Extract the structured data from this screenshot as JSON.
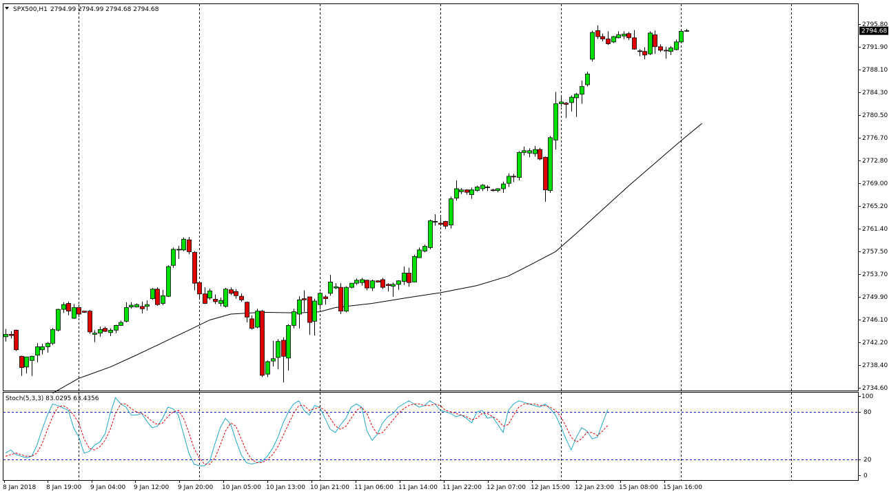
{
  "header": {
    "menu_icon": "triangle-down-icon",
    "symbol": "SPX500,H1",
    "ohlc": "2794.99 2794.99 2794.68 2794.68"
  },
  "colors": {
    "bull": "#00e000",
    "bear": "#e00000",
    "wick": "#000000",
    "ma": "#000000",
    "stoch_main": "#20a8c8",
    "stoch_signal": "#e00000",
    "level_lines": "#0000c0",
    "period_sep": "#000000",
    "price_tag_bg": "#000000",
    "price_tag_text": "#ffffff"
  },
  "stoch": {
    "label": "Stoch(5,3,3) 83.0295 63.4356",
    "ticks": [
      "100",
      "80",
      "20",
      "0"
    ],
    "levels": [
      80,
      20
    ]
  },
  "price_axis": {
    "ticks": [
      "2795.80",
      "2791.90",
      "2788.10",
      "2784.30",
      "2780.50",
      "2776.70",
      "2772.80",
      "2769.00",
      "2765.20",
      "2761.40",
      "2757.50",
      "2753.70",
      "2749.90",
      "2746.10",
      "2742.20",
      "2738.40",
      "2734.60"
    ],
    "current": "2794.68"
  },
  "time_axis": {
    "labels": [
      "8 Jan 2018",
      "8 Jan 19:00",
      "9 Jan 04:00",
      "9 Jan 12:00",
      "9 Jan 20:00",
      "10 Jan 05:00",
      "10 Jan 13:00",
      "10 Jan 21:00",
      "11 Jan 06:00",
      "11 Jan 14:00",
      "11 Jan 22:00",
      "12 Jan 07:00",
      "12 Jan 15:00",
      "12 Jan 23:00",
      "15 Jan 08:00",
      "15 Jan 16:00"
    ]
  },
  "chart_data": [
    {
      "type": "candlestick",
      "title": "SPX500,H1",
      "ylim": [
        2733.7,
        2797.7
      ],
      "grid": false,
      "period_separators_at_candle": [
        14,
        37,
        60,
        83,
        106,
        129,
        150
      ],
      "candles": [
        [
          2743.2,
          2744.5,
          2742.4,
          2743.6
        ],
        [
          2743.6,
          2744.1,
          2742.9,
          2743.4
        ],
        [
          2744.3,
          2744.4,
          2740.8,
          2741.0
        ],
        [
          2739.9,
          2740.0,
          2736.6,
          2738.0
        ],
        [
          2738.1,
          2739.8,
          2737.0,
          2739.8
        ],
        [
          2739.2,
          2740.0,
          2736.6,
          2739.9
        ],
        [
          2740.1,
          2742.1,
          2738.9,
          2741.5
        ],
        [
          2741.0,
          2742.0,
          2740.2,
          2741.5
        ],
        [
          2741.5,
          2742.3,
          2740.5,
          2742.1
        ],
        [
          2742.1,
          2744.7,
          2741.8,
          2744.4
        ],
        [
          2744.3,
          2747.9,
          2744.1,
          2747.8
        ],
        [
          2747.8,
          2749.0,
          2747.2,
          2748.6
        ],
        [
          2748.8,
          2749.1,
          2746.8,
          2747.5
        ],
        [
          2746.3,
          2748.7,
          2746.2,
          2748.1
        ],
        [
          2748.1,
          2748.6,
          2746.5,
          2747.0
        ],
        [
          2747.5,
          2747.5,
          2747.2,
          2747.3
        ],
        [
          2747.5,
          2747.7,
          2743.7,
          2744.0
        ],
        [
          2743.6,
          2744.3,
          2742.3,
          2743.8
        ],
        [
          2743.8,
          2744.9,
          2743.2,
          2744.4
        ],
        [
          2744.6,
          2744.9,
          2744.0,
          2744.1
        ],
        [
          2743.9,
          2744.6,
          2743.3,
          2744.3
        ],
        [
          2744.3,
          2745.2,
          2743.8,
          2745.1
        ],
        [
          2745.1,
          2745.9,
          2745.0,
          2745.6
        ],
        [
          2745.8,
          2749.0,
          2745.6,
          2748.1
        ],
        [
          2748.2,
          2749.0,
          2747.9,
          2748.5
        ],
        [
          2748.2,
          2748.8,
          2748.1,
          2748.6
        ],
        [
          2748.3,
          2749.1,
          2747.1,
          2747.9
        ],
        [
          2748.3,
          2749.3,
          2747.6,
          2748.6
        ],
        [
          2749.6,
          2751.4,
          2749.4,
          2751.2
        ],
        [
          2751.2,
          2751.5,
          2748.4,
          2748.6
        ],
        [
          2748.8,
          2751.1,
          2748.5,
          2750.1
        ],
        [
          2750.0,
          2755.2,
          2749.9,
          2755.0
        ],
        [
          2755.2,
          2758.2,
          2754.8,
          2757.9
        ],
        [
          2757.9,
          2758.5,
          2756.3,
          2757.9
        ],
        [
          2757.8,
          2759.9,
          2757.6,
          2759.6
        ],
        [
          2759.5,
          2760.0,
          2757.1,
          2757.5
        ],
        [
          2757.4,
          2757.6,
          2751.0,
          2752.2
        ],
        [
          2752.3,
          2752.4,
          2749.6,
          2750.4
        ],
        [
          2750.4,
          2751.5,
          2748.7,
          2748.8
        ],
        [
          2749.7,
          2751.3,
          2749.4,
          2750.9
        ],
        [
          2749.5,
          2750.3,
          2748.7,
          2749.1
        ],
        [
          2748.8,
          2749.8,
          2748.3,
          2749.3
        ],
        [
          2748.3,
          2751.4,
          2748.1,
          2751.2
        ],
        [
          2751.1,
          2751.5,
          2750.2,
          2750.5
        ],
        [
          2750.8,
          2751.2,
          2749.6,
          2750.1
        ],
        [
          2750.0,
          2750.5,
          2749.1,
          2749.4
        ],
        [
          2749.0,
          2749.1,
          2745.6,
          2746.5
        ],
        [
          2746.2,
          2746.8,
          2744.4,
          2744.6
        ],
        [
          2744.8,
          2747.9,
          2744.6,
          2747.5
        ],
        [
          2747.5,
          2747.7,
          2736.4,
          2736.7
        ],
        [
          2736.9,
          2739.2,
          2736.4,
          2739.0
        ],
        [
          2739.1,
          2742.5,
          2738.2,
          2739.5
        ],
        [
          2739.7,
          2742.8,
          2737.7,
          2742.4
        ],
        [
          2742.6,
          2743.1,
          2735.5,
          2739.9
        ],
        [
          2739.6,
          2745.3,
          2737.5,
          2745.1
        ],
        [
          2745.1,
          2747.9,
          2744.6,
          2747.4
        ],
        [
          2747.0,
          2750.0,
          2744.6,
          2749.4
        ],
        [
          2749.6,
          2751.0,
          2747.4,
          2749.4
        ],
        [
          2749.9,
          2749.9,
          2743.5,
          2745.6
        ],
        [
          2745.8,
          2749.6,
          2743.4,
          2749.2
        ],
        [
          2748.6,
          2750.7,
          2747.8,
          2750.5
        ],
        [
          2749.9,
          2750.2,
          2748.6,
          2749.6
        ],
        [
          2750.5,
          2753.6,
          2750.1,
          2752.4
        ],
        [
          2751.4,
          2752.2,
          2751.2,
          2751.6
        ],
        [
          2751.5,
          2752.2,
          2747.0,
          2747.5
        ],
        [
          2747.5,
          2751.7,
          2747.3,
          2751.5
        ],
        [
          2751.5,
          2752.2,
          2751.3,
          2752.2
        ],
        [
          2752.2,
          2753.0,
          2751.9,
          2752.7
        ],
        [
          2752.3,
          2753.1,
          2751.8,
          2752.8
        ],
        [
          2752.7,
          2752.8,
          2751.0,
          2751.4
        ],
        [
          2751.4,
          2752.8,
          2750.9,
          2752.6
        ],
        [
          2752.6,
          2752.7,
          2752.3,
          2752.4
        ],
        [
          2752.8,
          2753.1,
          2751.2,
          2751.5
        ],
        [
          2752.0,
          2752.2,
          2750.8,
          2751.8
        ],
        [
          2751.7,
          2752.3,
          2749.9,
          2752.0
        ],
        [
          2752.0,
          2752.7,
          2751.1,
          2752.6
        ],
        [
          2752.5,
          2755.0,
          2751.9,
          2753.9
        ],
        [
          2753.9,
          2754.8,
          2751.6,
          2752.3
        ],
        [
          2752.4,
          2757.0,
          2752.4,
          2756.7
        ],
        [
          2756.5,
          2758.2,
          2756.5,
          2757.8
        ],
        [
          2757.6,
          2758.7,
          2757.4,
          2758.4
        ],
        [
          2758.2,
          2762.9,
          2757.9,
          2762.7
        ],
        [
          2762.6,
          2763.8,
          2761.9,
          2762.6
        ],
        [
          2762.3,
          2763.3,
          2761.8,
          2762.1
        ],
        [
          2762.6,
          2762.7,
          2761.3,
          2761.8
        ],
        [
          2762.0,
          2766.8,
          2761.4,
          2766.4
        ],
        [
          2766.5,
          2769.5,
          2766.1,
          2768.1
        ],
        [
          2767.6,
          2768.2,
          2767.2,
          2767.9
        ],
        [
          2767.9,
          2768.0,
          2767.1,
          2767.5
        ],
        [
          2767.1,
          2768.3,
          2766.4,
          2767.9
        ],
        [
          2767.8,
          2768.6,
          2767.6,
          2768.4
        ],
        [
          2768.1,
          2768.9,
          2767.7,
          2768.7
        ],
        [
          2768.4,
          2768.7,
          2767.7,
          2768.3
        ],
        [
          2767.9,
          2768.1,
          2767.6,
          2767.8
        ],
        [
          2767.8,
          2768.2,
          2767.5,
          2768.1
        ],
        [
          2768.1,
          2769.3,
          2767.4,
          2768.9
        ],
        [
          2769.0,
          2770.7,
          2768.4,
          2770.2
        ],
        [
          2770.2,
          2770.6,
          2769.2,
          2770.1
        ],
        [
          2770.0,
          2774.4,
          2769.5,
          2774.2
        ],
        [
          2774.2,
          2775.2,
          2773.7,
          2774.5
        ],
        [
          2774.1,
          2774.9,
          2773.4,
          2774.5
        ],
        [
          2774.0,
          2775.3,
          2773.5,
          2774.7
        ],
        [
          2774.7,
          2775.0,
          2772.9,
          2773.1
        ],
        [
          2773.4,
          2773.5,
          2765.9,
          2767.9
        ],
        [
          2767.8,
          2777.0,
          2767.4,
          2776.7
        ],
        [
          2776.3,
          2784.4,
          2774.7,
          2782.4
        ],
        [
          2782.4,
          2783.5,
          2781.9,
          2782.7
        ],
        [
          2782.5,
          2782.7,
          2780.0,
          2782.3
        ],
        [
          2782.6,
          2783.8,
          2781.1,
          2783.5
        ],
        [
          2783.4,
          2784.2,
          2780.2,
          2784.0
        ],
        [
          2784.0,
          2786.3,
          2782.4,
          2785.3
        ],
        [
          2785.6,
          2787.8,
          2785.3,
          2787.4
        ],
        [
          2789.9,
          2794.7,
          2789.5,
          2794.4
        ],
        [
          2794.7,
          2795.6,
          2793.3,
          2793.7
        ],
        [
          2793.7,
          2794.2,
          2792.9,
          2793.3
        ],
        [
          2793.3,
          2794.6,
          2792.3,
          2792.5
        ],
        [
          2792.8,
          2793.8,
          2792.6,
          2793.7
        ],
        [
          2793.5,
          2794.6,
          2793.4,
          2794.0
        ],
        [
          2793.8,
          2794.6,
          2793.3,
          2794.1
        ],
        [
          2794.2,
          2794.5,
          2793.1,
          2793.5
        ],
        [
          2793.5,
          2794.8,
          2791.5,
          2791.6
        ],
        [
          2791.3,
          2791.6,
          2790.4,
          2791.2
        ],
        [
          2791.2,
          2791.9,
          2789.9,
          2790.6
        ],
        [
          2790.8,
          2794.6,
          2790.6,
          2794.3
        ],
        [
          2794.0,
          2794.7,
          2790.8,
          2792.0
        ],
        [
          2792.0,
          2792.4,
          2791.1,
          2791.4
        ],
        [
          2791.4,
          2792.0,
          2790.0,
          2791.3
        ],
        [
          2791.2,
          2792.1,
          2790.6,
          2791.8
        ],
        [
          2791.5,
          2793.2,
          2791.4,
          2792.8
        ],
        [
          2792.8,
          2794.9,
          2792.8,
          2794.6
        ],
        [
          2794.7,
          2795.0,
          2794.6,
          2794.7
        ]
      ],
      "ma_points": [
        [
          9,
          2733.7
        ],
        [
          14,
          2736.2
        ],
        [
          20,
          2738.1
        ],
        [
          25,
          2740.1
        ],
        [
          30,
          2742.2
        ],
        [
          35,
          2744.3
        ],
        [
          39,
          2746.0
        ],
        [
          43,
          2747.0
        ],
        [
          49,
          2747.3
        ],
        [
          56,
          2747.2
        ],
        [
          60,
          2747.4
        ],
        [
          63,
          2748.1
        ],
        [
          70,
          2748.8
        ],
        [
          77,
          2749.8
        ],
        [
          83,
          2750.6
        ],
        [
          90,
          2751.8
        ],
        [
          96,
          2753.4
        ],
        [
          100,
          2755.2
        ],
        [
          105,
          2757.5
        ],
        [
          109,
          2760.6
        ],
        [
          114,
          2764.6
        ],
        [
          119,
          2768.6
        ],
        [
          124,
          2772.4
        ],
        [
          129,
          2776.2
        ],
        [
          133,
          2779.1
        ]
      ]
    },
    {
      "type": "line",
      "title": "Stoch(5,3,3) 83.0295 63.4356",
      "ylim": [
        0,
        100
      ],
      "series": [
        {
          "values": [
            28,
            32,
            26,
            24,
            22,
            24,
            38,
            58,
            76,
            90,
            88,
            85,
            82,
            60,
            48,
            28,
            30,
            38,
            42,
            52,
            78,
            98,
            90,
            86,
            76,
            76,
            78,
            68,
            60,
            62,
            72,
            86,
            84,
            76,
            52,
            28,
            14,
            12,
            12,
            18,
            40,
            60,
            72,
            64,
            44,
            26,
            16,
            14,
            16,
            18,
            24,
            34,
            48,
            66,
            80,
            90,
            94,
            82,
            76,
            88,
            86,
            72,
            58,
            54,
            64,
            72,
            86,
            90,
            86,
            56,
            44,
            52,
            66,
            74,
            78,
            86,
            90,
            94,
            90,
            86,
            88,
            94,
            90,
            82,
            80,
            78,
            74,
            76,
            72,
            66,
            80,
            82,
            72,
            74,
            64,
            54,
            82,
            90,
            94,
            92,
            90,
            88,
            86,
            90,
            84,
            76,
            62,
            46,
            32,
            48,
            60,
            56,
            46,
            48,
            66,
            83
          ],
          "x_start": 0
        },
        {
          "values": [
            24,
            26,
            28,
            26,
            24,
            24,
            28,
            40,
            58,
            74,
            86,
            88,
            84,
            76,
            66,
            46,
            34,
            32,
            36,
            44,
            58,
            78,
            90,
            90,
            84,
            80,
            78,
            74,
            68,
            64,
            66,
            74,
            80,
            82,
            72,
            54,
            34,
            22,
            14,
            14,
            22,
            38,
            56,
            66,
            62,
            46,
            30,
            20,
            16,
            16,
            20,
            26,
            36,
            50,
            64,
            78,
            88,
            88,
            82,
            84,
            86,
            82,
            72,
            62,
            58,
            62,
            72,
            82,
            86,
            78,
            62,
            52,
            54,
            62,
            70,
            78,
            84,
            88,
            90,
            90,
            88,
            88,
            90,
            88,
            82,
            80,
            78,
            76,
            74,
            70,
            72,
            78,
            78,
            74,
            70,
            62,
            64,
            76,
            86,
            90,
            90,
            90,
            88,
            88,
            86,
            82,
            74,
            62,
            48,
            42,
            46,
            54,
            54,
            50,
            56,
            63
          ],
          "x_start": 0
        }
      ],
      "levels": [
        80,
        20
      ]
    }
  ]
}
